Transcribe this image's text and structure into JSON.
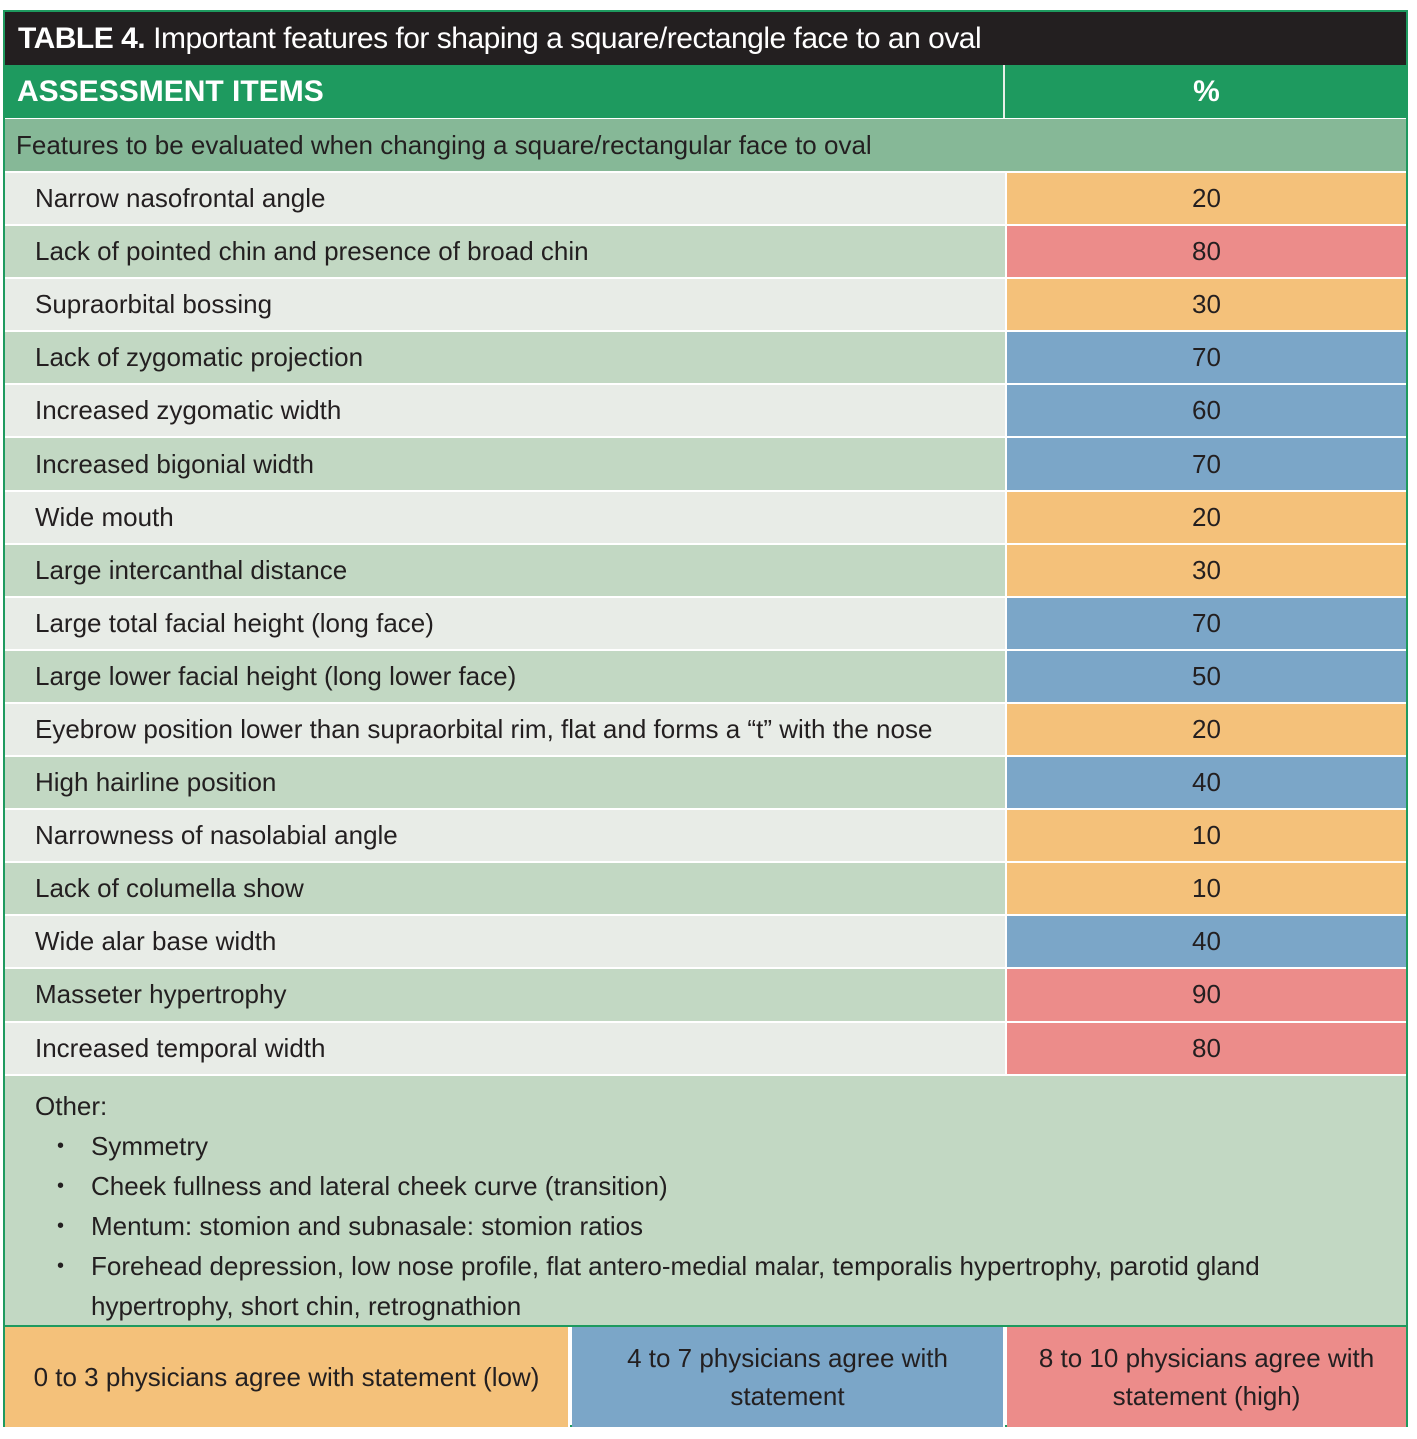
{
  "title": {
    "label": "TABLE 4.",
    "text": "Important features for shaping a square/rectangle face to an oval"
  },
  "header": {
    "col_items": "ASSESSMENT ITEMS",
    "col_percent": "%"
  },
  "section": "Features to be evaluated when changing a square/rectangular face to oval",
  "rows": [
    {
      "item": "Narrow nasofrontal angle",
      "value": "20",
      "level": "low"
    },
    {
      "item": "Lack of pointed chin and presence of broad chin",
      "value": "80",
      "level": "high"
    },
    {
      "item": "Supraorbital bossing",
      "value": "30",
      "level": "low"
    },
    {
      "item": "Lack of zygomatic projection",
      "value": "70",
      "level": "mid"
    },
    {
      "item": "Increased zygomatic width",
      "value": "60",
      "level": "mid"
    },
    {
      "item": "Increased bigonial width",
      "value": "70",
      "level": "mid"
    },
    {
      "item": "Wide mouth",
      "value": "20",
      "level": "low"
    },
    {
      "item": "Large intercanthal distance",
      "value": "30",
      "level": "low"
    },
    {
      "item": "Large total facial height (long face)",
      "value": "70",
      "level": "mid"
    },
    {
      "item": "Large lower facial height (long lower face)",
      "value": "50",
      "level": "mid"
    },
    {
      "item": "Eyebrow position lower than supraorbital rim, flat and forms a “t” with the nose",
      "value": "20",
      "level": "low"
    },
    {
      "item": "High hairline position",
      "value": "40",
      "level": "mid"
    },
    {
      "item": "Narrowness of nasolabial angle",
      "value": "10",
      "level": "low"
    },
    {
      "item": "Lack of columella show",
      "value": "10",
      "level": "low"
    },
    {
      "item": "Wide alar base width",
      "value": "40",
      "level": "mid"
    },
    {
      "item": "Masseter hypertrophy",
      "value": "90",
      "level": "high"
    },
    {
      "item": "Increased temporal width",
      "value": "80",
      "level": "high"
    }
  ],
  "other": {
    "heading": "Other:",
    "items": [
      "Symmetry",
      "Cheek fullness and lateral cheek curve (transition)",
      "Mentum: stomion and subnasale: stomion ratios",
      "Forehead depression, low nose profile, flat antero-medial malar, temporalis hypertrophy, parotid gland hypertrophy, short chin, retrognathion"
    ]
  },
  "legend": {
    "low": "0 to 3 physicians agree with statement (low)",
    "mid": "4 to 7 physicians agree with statement",
    "high": "8 to 10 physicians agree with statement (high)"
  },
  "colors": {
    "title_bg": "#231f20",
    "header_bg": "#1e9a5f",
    "section_bg": "#86b897",
    "row_light": "#e8ece7",
    "row_dark": "#c2d8c3",
    "low": "#f4c17a",
    "mid": "#7ba6c8",
    "high": "#ec8c8a"
  }
}
